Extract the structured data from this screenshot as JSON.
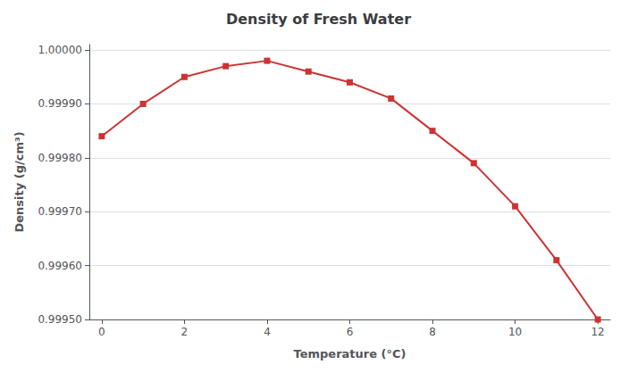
{
  "chart_data": {
    "type": "line",
    "title": "Density of Fresh Water",
    "xlabel": "Temperature (°C)",
    "ylabel": "Density (g/cm³)",
    "x": [
      0,
      1,
      2,
      3,
      4,
      5,
      6,
      7,
      8,
      9,
      10,
      11,
      12
    ],
    "values": [
      0.99984,
      0.9999,
      0.99995,
      0.99997,
      0.99998,
      0.99996,
      0.99994,
      0.99991,
      0.99985,
      0.99979,
      0.99971,
      0.99961,
      0.9995
    ],
    "color": "#cc3333",
    "marker": "square",
    "line_style": "solid",
    "xlim": [
      -0.3,
      12.3
    ],
    "xticks": [
      0,
      2,
      4,
      6,
      8,
      10,
      12
    ],
    "ylim": [
      0.9995,
      1.00001
    ],
    "yticks": [
      {
        "value": 0.9995,
        "label": "0.99950"
      },
      {
        "value": 0.9996,
        "label": "0.99960"
      },
      {
        "value": 0.9997,
        "label": "0.99970"
      },
      {
        "value": 0.9998,
        "label": "0.99980"
      },
      {
        "value": 0.9999,
        "label": "0.99990"
      },
      {
        "value": 1.0,
        "label": "1.00000"
      }
    ],
    "grid": true
  }
}
